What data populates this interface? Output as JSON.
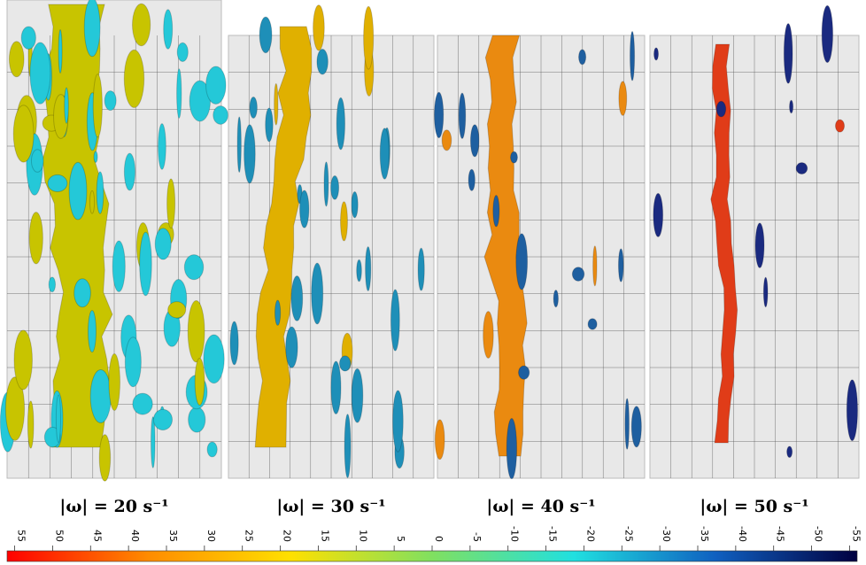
{
  "panels": [
    {
      "caption": "|ω| = 20 s⁻¹"
    },
    {
      "caption": "|ω| = 30 s⁻¹"
    },
    {
      "caption": "|ω| = 40 s⁻¹"
    },
    {
      "caption": "|ω| = 50 s⁻¹"
    }
  ],
  "colorbar": {
    "lim": [
      56,
      -56
    ],
    "ticks": [
      55,
      50,
      45,
      40,
      35,
      30,
      25,
      20,
      15,
      10,
      5,
      0,
      -5,
      -10,
      -15,
      -20,
      -25,
      -30,
      -35,
      -40,
      -45,
      -50,
      -55
    ],
    "colors": [
      "#ff0000",
      "#ff8c00",
      "#ffe000",
      "#80e060",
      "#20e0e0",
      "#1060c0",
      "#000040"
    ]
  }
}
